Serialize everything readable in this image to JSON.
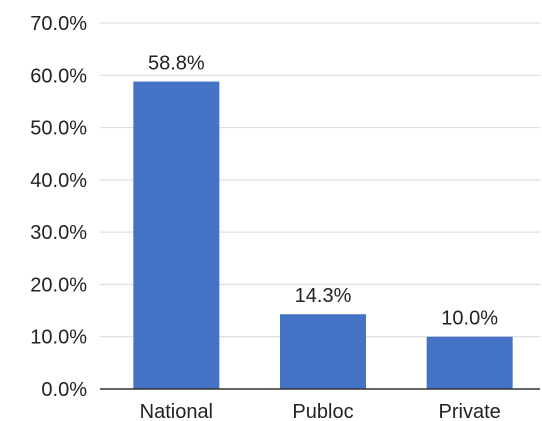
{
  "chart_data": {
    "type": "bar",
    "categories": [
      "National",
      "Publoc",
      "Private"
    ],
    "values": [
      58.8,
      14.3,
      10.0
    ],
    "data_labels": [
      "58.8%",
      "14.3%",
      "10.0%"
    ],
    "title": "",
    "xlabel": "",
    "ylabel": "",
    "ylim": [
      0,
      70
    ],
    "yticks": [
      0,
      10,
      20,
      30,
      40,
      50,
      60,
      70
    ],
    "ytick_labels": [
      "0.0%",
      "10.0%",
      "20.0%",
      "30.0%",
      "40.0%",
      "50.0%",
      "60.0%",
      "70.0%"
    ],
    "grid": true,
    "legend": "none",
    "bar_color": "#4472c4"
  }
}
